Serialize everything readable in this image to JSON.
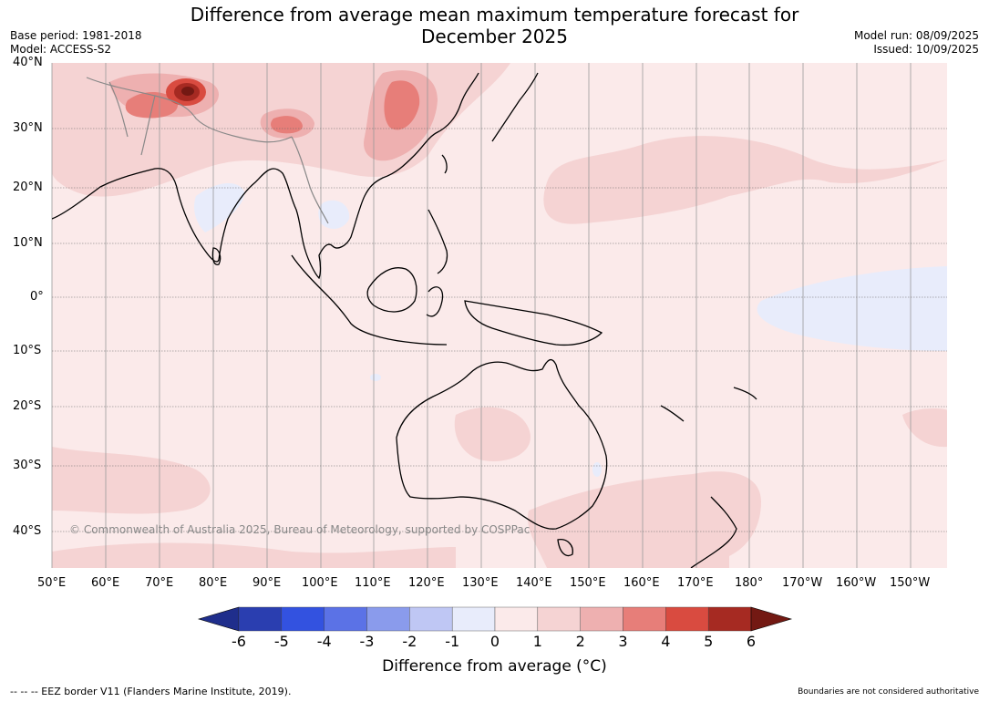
{
  "header": {
    "title_line1": "Difference from average mean maximum temperature forecast for",
    "title_line2": "December 2025",
    "base_period": "Base period: 1981-2018",
    "model": "Model: ACCESS-S2",
    "model_run": "Model run: 08/09/2025",
    "issued": "Issued: 10/09/2025"
  },
  "map": {
    "lat_labels": [
      "40°N",
      "30°N",
      "20°N",
      "10°N",
      "0°",
      "10°S",
      "20°S",
      "30°S",
      "40°S"
    ],
    "lon_labels": [
      "50°E",
      "60°E",
      "70°E",
      "80°E",
      "90°E",
      "100°E",
      "110°E",
      "120°E",
      "130°E",
      "140°E",
      "150°E",
      "160°E",
      "170°E",
      "180°",
      "170°W",
      "160°W",
      "150°W"
    ],
    "copyright": "© Commonwealth of Australia 2025, Bureau of Meteorology, supported by COSPPac"
  },
  "colorbar": {
    "ticks": [
      "-6",
      "-5",
      "-4",
      "-3",
      "-2",
      "-1",
      "0",
      "1",
      "2",
      "3",
      "4",
      "5",
      "6"
    ],
    "colors": [
      "#1f2e8c",
      "#2a3eb0",
      "#3352e0",
      "#5b72e6",
      "#8a9bec",
      "#bfc7f4",
      "#e8ecfb",
      "#fbeaea",
      "#f5d3d3",
      "#eeb0b0",
      "#e77e79",
      "#d94b40",
      "#a62a22",
      "#731913"
    ],
    "label": "Difference from average (°C)"
  },
  "footer": {
    "eez_note": "-- -- -- EEZ border V11 (Flanders Marine Institute, 2019).",
    "disclaimer": "Boundaries are not considered authoritative"
  }
}
